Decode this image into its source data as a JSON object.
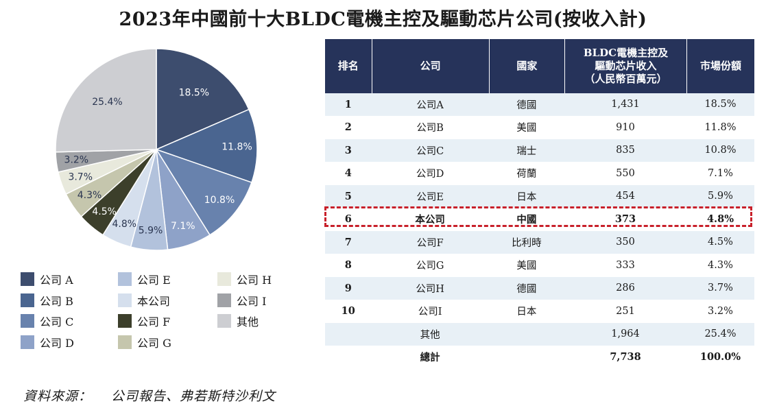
{
  "title": "2023年中國前十大BLDC電機主控及驅動芯片公司(按收入計)",
  "source": {
    "label": "資料來源：",
    "text": "公司報告、弗若斯特沙利文"
  },
  "chart_data": [
    {
      "type": "pie",
      "title": "",
      "slices": [
        {
          "label": "公司 A",
          "value": 18.5,
          "value_label": "18.5%",
          "color": "#3d4d6e"
        },
        {
          "label": "公司 B",
          "value": 11.8,
          "value_label": "11.8%",
          "color": "#4a6590"
        },
        {
          "label": "公司 C",
          "value": 10.8,
          "value_label": "10.8%",
          "color": "#6882ad"
        },
        {
          "label": "公司 D",
          "value": 7.1,
          "value_label": "7.1%",
          "color": "#8ea2c8"
        },
        {
          "label": "公司 E",
          "value": 5.9,
          "value_label": "5.9%",
          "color": "#b2c2dc"
        },
        {
          "label": "本公司",
          "value": 4.8,
          "value_label": "4.8%",
          "color": "#d5dfed"
        },
        {
          "label": "公司 F",
          "value": 4.5,
          "value_label": "4.5%",
          "color": "#3c3f2b"
        },
        {
          "label": "公司 G",
          "value": 4.3,
          "value_label": "4.3%",
          "color": "#c5c6ad"
        },
        {
          "label": "公司 H",
          "value": 3.7,
          "value_label": "3.7%",
          "color": "#e8e9dc"
        },
        {
          "label": "公司 I",
          "value": 3.2,
          "value_label": "3.2%",
          "color": "#a0a2a6"
        },
        {
          "label": "其他",
          "value": 25.4,
          "value_label": "25.4%",
          "color": "#cdced2"
        }
      ],
      "legend_position": "bottom"
    },
    {
      "type": "table",
      "columns": [
        "排名",
        "公司",
        "國家",
        "BLDC電機主控及驅動芯片收入（人民幣百萬元）",
        "市場份額"
      ],
      "header_lines": {
        "rank": "排名",
        "company": "公司",
        "country": "國家",
        "revenue": [
          "BLDC電機主控及",
          "驅動芯片收入",
          "（人民幣百萬元）"
        ],
        "share": "市場份額"
      },
      "rows": [
        {
          "rank": "1",
          "company": "公司A",
          "country": "德國",
          "revenue": "1,431",
          "share": "18.5%"
        },
        {
          "rank": "2",
          "company": "公司B",
          "country": "美國",
          "revenue": "910",
          "share": "11.8%"
        },
        {
          "rank": "3",
          "company": "公司C",
          "country": "瑞士",
          "revenue": "835",
          "share": "10.8%"
        },
        {
          "rank": "4",
          "company": "公司D",
          "country": "荷蘭",
          "revenue": "550",
          "share": "7.1%"
        },
        {
          "rank": "5",
          "company": "公司E",
          "country": "日本",
          "revenue": "454",
          "share": "5.9%"
        },
        {
          "rank": "6",
          "company": "本公司",
          "country": "中國",
          "revenue": "373",
          "share": "4.8%",
          "highlight": true
        },
        {
          "rank": "7",
          "company": "公司F",
          "country": "比利時",
          "revenue": "350",
          "share": "4.5%"
        },
        {
          "rank": "8",
          "company": "公司G",
          "country": "美國",
          "revenue": "333",
          "share": "4.3%"
        },
        {
          "rank": "9",
          "company": "公司H",
          "country": "德國",
          "revenue": "286",
          "share": "3.7%"
        },
        {
          "rank": "10",
          "company": "公司I",
          "country": "日本",
          "revenue": "251",
          "share": "3.2%"
        },
        {
          "rank": "",
          "company": "其他",
          "country": "",
          "revenue": "1,964",
          "share": "25.4%"
        }
      ],
      "total": {
        "company": "總計",
        "revenue": "7,738",
        "share": "100.0%"
      }
    }
  ]
}
